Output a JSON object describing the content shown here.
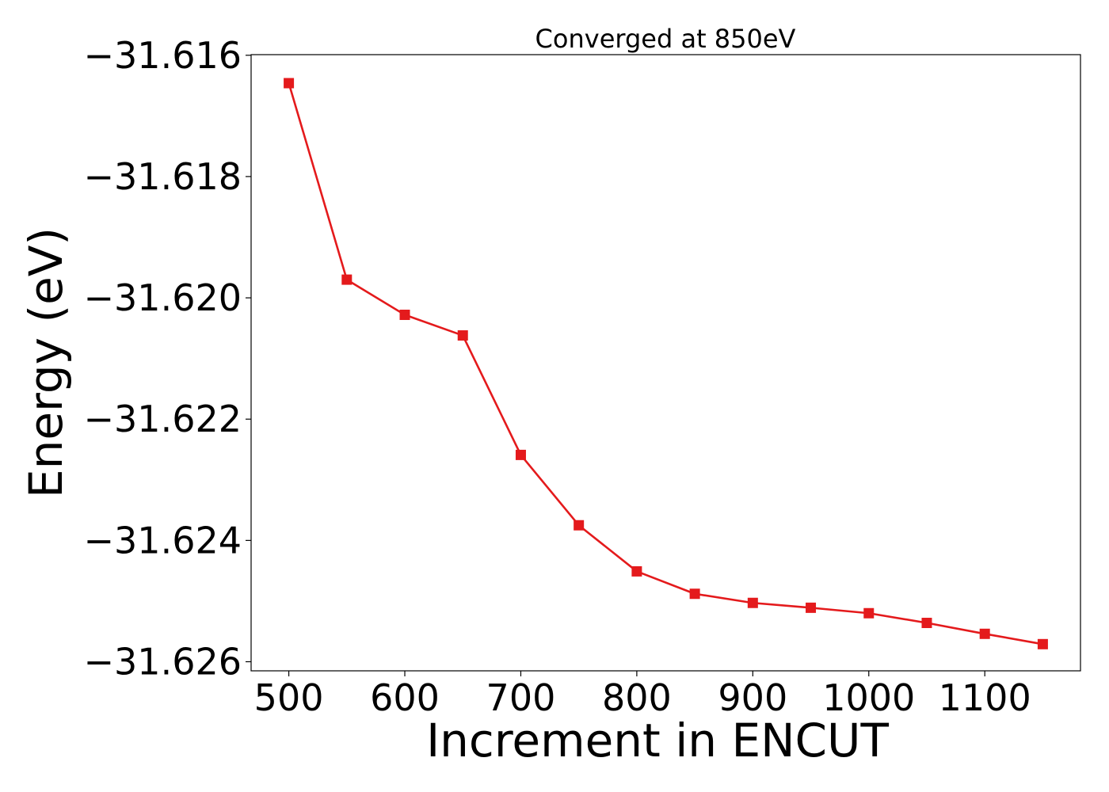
{
  "chart_data": {
    "type": "line",
    "title": "Converged at 850eV",
    "xlabel": "Increment in ENCUT",
    "ylabel": "Energy (eV)",
    "x": [
      500,
      550,
      600,
      650,
      700,
      750,
      800,
      850,
      900,
      950,
      1000,
      1050,
      1100,
      1150
    ],
    "series": [
      {
        "values": [
          -31.61646,
          -31.6197,
          -31.62028,
          -31.62062,
          -31.62259,
          -31.62375,
          -31.62451,
          -31.62488,
          -31.62503,
          -31.62511,
          -31.6252,
          -31.62536,
          -31.62554,
          -31.62571
        ],
        "color": "#e41a1c",
        "marker": "square"
      }
    ],
    "xticks": [
      500,
      600,
      700,
      800,
      900,
      1000,
      1100
    ],
    "yticks": [
      -31.616,
      -31.618,
      -31.62,
      -31.622,
      -31.624,
      -31.626
    ],
    "ytick_labels": [
      "−31.616",
      "−31.618",
      "−31.620",
      "−31.622",
      "−31.624",
      "−31.626"
    ],
    "xlim": [
      467.5,
      1182.5
    ],
    "ylim": [
      -31.62615,
      -31.61599
    ],
    "grid": false,
    "legend": false
  }
}
